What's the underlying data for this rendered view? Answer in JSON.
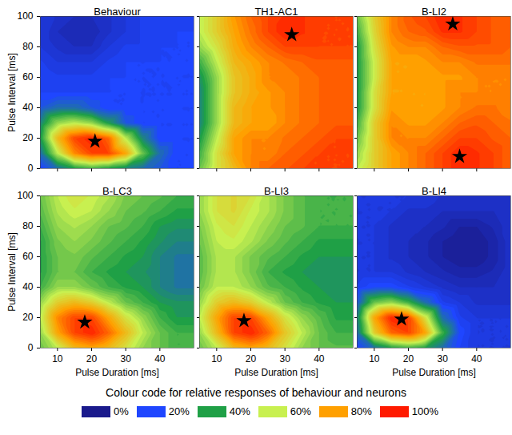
{
  "chart_data": [
    {
      "type": "contour",
      "title": "Behaviour",
      "ylabel": "Pulse Interval [ms]",
      "tick_labels": "y",
      "marker": "star",
      "xlim": [
        5,
        50
      ],
      "ylim": [
        0,
        100
      ],
      "xticks": [
        10,
        20,
        30,
        40
      ],
      "yticks": [
        0,
        20,
        40,
        60,
        80,
        100
      ],
      "x": [
        5,
        10,
        15,
        20,
        25,
        30,
        35,
        40,
        45,
        50
      ],
      "y": [
        0,
        10,
        20,
        30,
        40,
        50,
        60,
        70,
        80,
        90,
        100
      ],
      "values": [
        [
          20,
          30,
          40,
          45,
          40,
          35,
          30,
          25,
          20,
          20
        ],
        [
          30,
          60,
          85,
          95,
          95,
          80,
          50,
          30,
          20,
          20
        ],
        [
          40,
          75,
          95,
          100,
          90,
          60,
          35,
          20,
          20,
          20
        ],
        [
          35,
          55,
          60,
          55,
          40,
          25,
          20,
          20,
          20,
          20
        ],
        [
          25,
          30,
          30,
          25,
          20,
          20,
          20,
          20,
          20,
          20
        ],
        [
          20,
          20,
          20,
          20,
          20,
          20,
          20,
          20,
          20,
          20
        ],
        [
          20,
          18,
          18,
          18,
          20,
          20,
          20,
          20,
          20,
          20
        ],
        [
          18,
          15,
          15,
          15,
          18,
          20,
          20,
          20,
          20,
          20
        ],
        [
          15,
          12,
          10,
          10,
          15,
          18,
          18,
          20,
          20,
          20
        ],
        [
          15,
          10,
          8,
          8,
          12,
          15,
          18,
          18,
          20,
          20
        ],
        [
          15,
          12,
          10,
          10,
          12,
          15,
          18,
          18,
          18,
          18
        ]
      ],
      "peaks": [
        {
          "x": 21,
          "y": 18
        }
      ]
    },
    {
      "type": "contour",
      "title": "TH1-AC1",
      "tick_labels": false,
      "marker": "star",
      "xlim": [
        5,
        50
      ],
      "ylim": [
        0,
        100
      ],
      "xticks": [
        10,
        20,
        30,
        40
      ],
      "yticks": [
        0,
        20,
        40,
        60,
        80,
        100
      ],
      "x": [
        5,
        10,
        15,
        20,
        25,
        30,
        35,
        40,
        45,
        50
      ],
      "y": [
        0,
        10,
        20,
        30,
        40,
        50,
        60,
        70,
        80,
        90,
        100
      ],
      "values": [
        [
          50,
          65,
          75,
          85,
          90,
          92,
          95,
          95,
          95,
          95
        ],
        [
          45,
          65,
          80,
          85,
          85,
          90,
          92,
          95,
          95,
          95
        ],
        [
          40,
          60,
          80,
          85,
          85,
          88,
          90,
          92,
          95,
          95
        ],
        [
          35,
          55,
          75,
          80,
          80,
          85,
          88,
          90,
          92,
          92
        ],
        [
          35,
          55,
          75,
          80,
          82,
          85,
          88,
          90,
          92,
          92
        ],
        [
          35,
          55,
          72,
          78,
          82,
          85,
          88,
          90,
          92,
          92
        ],
        [
          38,
          55,
          72,
          78,
          85,
          85,
          88,
          90,
          92,
          92
        ],
        [
          45,
          60,
          75,
          80,
          85,
          88,
          90,
          92,
          92,
          92
        ],
        [
          55,
          65,
          78,
          85,
          90,
          95,
          95,
          95,
          95,
          95
        ],
        [
          60,
          70,
          80,
          88,
          95,
          100,
          98,
          95,
          95,
          95
        ],
        [
          60,
          70,
          82,
          90,
          95,
          98,
          98,
          95,
          95,
          95
        ]
      ],
      "peaks": [
        {
          "x": 32,
          "y": 88
        }
      ]
    },
    {
      "type": "contour",
      "title": "B-LI2",
      "tick_labels": false,
      "marker": "star",
      "xlim": [
        5,
        50
      ],
      "ylim": [
        0,
        100
      ],
      "xticks": [
        10,
        20,
        30,
        40
      ],
      "yticks": [
        0,
        20,
        40,
        60,
        80,
        100
      ],
      "x": [
        5,
        10,
        15,
        20,
        25,
        30,
        35,
        40,
        45,
        50
      ],
      "y": [
        0,
        10,
        20,
        30,
        40,
        50,
        60,
        70,
        80,
        90,
        100
      ],
      "values": [
        [
          60,
          70,
          80,
          85,
          90,
          95,
          100,
          98,
          95,
          90
        ],
        [
          55,
          70,
          80,
          85,
          90,
          95,
          100,
          98,
          95,
          90
        ],
        [
          50,
          70,
          85,
          85,
          85,
          90,
          95,
          95,
          92,
          90
        ],
        [
          45,
          70,
          85,
          82,
          82,
          85,
          90,
          92,
          90,
          88
        ],
        [
          40,
          65,
          82,
          80,
          80,
          82,
          85,
          88,
          88,
          85
        ],
        [
          40,
          65,
          80,
          80,
          80,
          82,
          85,
          85,
          85,
          85
        ],
        [
          40,
          62,
          80,
          80,
          80,
          82,
          82,
          85,
          85,
          85
        ],
        [
          40,
          62,
          80,
          80,
          82,
          85,
          85,
          88,
          88,
          88
        ],
        [
          40,
          65,
          82,
          85,
          85,
          90,
          92,
          92,
          92,
          90
        ],
        [
          45,
          68,
          85,
          90,
          92,
          98,
          98,
          95,
          92,
          90
        ],
        [
          50,
          70,
          85,
          92,
          95,
          100,
          98,
          95,
          92,
          90
        ]
      ],
      "peaks": [
        {
          "x": 33,
          "y": 95
        },
        {
          "x": 35,
          "y": 8
        }
      ]
    },
    {
      "type": "contour",
      "title": "B-LC3",
      "xlabel": "Pulse Duration [ms]",
      "ylabel": "Pulse Interval [ms]",
      "tick_labels": true,
      "marker": "star",
      "xlim": [
        5,
        50
      ],
      "ylim": [
        0,
        100
      ],
      "xticks": [
        10,
        20,
        30,
        40
      ],
      "yticks": [
        0,
        20,
        40,
        60,
        80,
        100
      ],
      "x": [
        5,
        10,
        15,
        20,
        25,
        30,
        35,
        40,
        45,
        50
      ],
      "y": [
        0,
        10,
        20,
        30,
        40,
        50,
        60,
        70,
        80,
        90,
        100
      ],
      "values": [
        [
          50,
          60,
          75,
          80,
          75,
          65,
          55,
          50,
          45,
          45
        ],
        [
          55,
          80,
          95,
          100,
          90,
          75,
          60,
          50,
          45,
          45
        ],
        [
          60,
          85,
          95,
          95,
          80,
          65,
          55,
          45,
          40,
          40
        ],
        [
          55,
          70,
          75,
          70,
          60,
          50,
          45,
          40,
          38,
          38
        ],
        [
          45,
          55,
          55,
          50,
          45,
          42,
          40,
          35,
          32,
          32
        ],
        [
          42,
          50,
          50,
          45,
          42,
          40,
          38,
          35,
          32,
          32
        ],
        [
          42,
          50,
          52,
          48,
          45,
          42,
          40,
          35,
          32,
          32
        ],
        [
          42,
          52,
          55,
          52,
          48,
          45,
          42,
          38,
          35,
          35
        ],
        [
          45,
          55,
          58,
          55,
          50,
          48,
          45,
          40,
          38,
          38
        ],
        [
          48,
          58,
          62,
          60,
          55,
          50,
          48,
          45,
          42,
          42
        ],
        [
          50,
          60,
          65,
          62,
          58,
          52,
          50,
          48,
          45,
          45
        ]
      ],
      "peaks": [
        {
          "x": 18,
          "y": 17
        }
      ]
    },
    {
      "type": "contour",
      "title": "B-LI3",
      "xlabel": "Pulse Duration [ms]",
      "tick_labels": "x",
      "marker": "star",
      "xlim": [
        5,
        50
      ],
      "ylim": [
        0,
        100
      ],
      "xticks": [
        10,
        20,
        30,
        40
      ],
      "yticks": [
        0,
        20,
        40,
        60,
        80,
        100
      ],
      "x": [
        5,
        10,
        15,
        20,
        25,
        30,
        35,
        40,
        45,
        50
      ],
      "y": [
        0,
        10,
        20,
        30,
        40,
        50,
        60,
        70,
        80,
        90,
        100
      ],
      "values": [
        [
          50,
          60,
          75,
          80,
          75,
          65,
          55,
          50,
          48,
          48
        ],
        [
          55,
          75,
          95,
          100,
          90,
          72,
          60,
          50,
          45,
          45
        ],
        [
          60,
          80,
          95,
          95,
          80,
          65,
          55,
          48,
          42,
          42
        ],
        [
          55,
          70,
          75,
          70,
          60,
          50,
          45,
          42,
          40,
          40
        ],
        [
          50,
          60,
          60,
          55,
          48,
          45,
          42,
          40,
          38,
          38
        ],
        [
          48,
          58,
          58,
          52,
          45,
          42,
          40,
          38,
          38,
          38
        ],
        [
          48,
          58,
          58,
          52,
          48,
          45,
          42,
          40,
          40,
          40
        ],
        [
          50,
          60,
          62,
          58,
          52,
          48,
          45,
          42,
          42,
          42
        ],
        [
          52,
          62,
          65,
          60,
          55,
          50,
          48,
          45,
          45,
          45
        ],
        [
          55,
          65,
          68,
          62,
          58,
          52,
          48,
          45,
          45,
          45
        ],
        [
          55,
          65,
          68,
          65,
          58,
          52,
          48,
          45,
          45,
          45
        ]
      ],
      "peaks": [
        {
          "x": 18,
          "y": 18
        }
      ]
    },
    {
      "type": "contour",
      "title": "B-LI4",
      "xlabel": "Pulse Duration [ms]",
      "tick_labels": "x",
      "marker": "star",
      "xlim": [
        5,
        50
      ],
      "ylim": [
        0,
        100
      ],
      "xticks": [
        10,
        20,
        30,
        40
      ],
      "yticks": [
        0,
        20,
        40,
        60,
        80,
        100
      ],
      "x": [
        5,
        10,
        15,
        20,
        25,
        30,
        35,
        40,
        45,
        50
      ],
      "y": [
        0,
        10,
        20,
        30,
        40,
        50,
        60,
        70,
        80,
        90,
        100
      ],
      "values": [
        [
          20,
          30,
          40,
          45,
          40,
          30,
          20,
          15,
          15,
          15
        ],
        [
          30,
          70,
          90,
          95,
          80,
          45,
          22,
          15,
          15,
          15
        ],
        [
          35,
          80,
          100,
          95,
          65,
          30,
          18,
          15,
          15,
          15
        ],
        [
          25,
          50,
          55,
          45,
          30,
          18,
          15,
          12,
          12,
          12
        ],
        [
          18,
          22,
          22,
          18,
          15,
          12,
          10,
          10,
          10,
          12
        ],
        [
          15,
          15,
          15,
          12,
          10,
          8,
          6,
          6,
          8,
          12
        ],
        [
          15,
          15,
          12,
          10,
          8,
          5,
          3,
          3,
          6,
          12
        ],
        [
          15,
          15,
          12,
          10,
          8,
          5,
          3,
          3,
          6,
          12
        ],
        [
          15,
          15,
          12,
          10,
          10,
          8,
          5,
          5,
          8,
          12
        ],
        [
          15,
          15,
          15,
          12,
          12,
          10,
          10,
          10,
          10,
          12
        ],
        [
          15,
          15,
          15,
          15,
          15,
          12,
          12,
          12,
          12,
          12
        ]
      ],
      "peaks": [
        {
          "x": 18,
          "y": 19
        }
      ]
    }
  ],
  "colorbar": {
    "title": "Colour code for relative responses of behaviour and neurons",
    "range": [
      0,
      100
    ],
    "ticks": [
      {
        "value": 0,
        "label": "0%"
      },
      {
        "value": 20,
        "label": "20%"
      },
      {
        "value": 40,
        "label": "40%"
      },
      {
        "value": 60,
        "label": "60%"
      },
      {
        "value": 80,
        "label": "80%"
      },
      {
        "value": 100,
        "label": "100%"
      }
    ],
    "colors": [
      "#1a1a8c",
      "#1f46ff",
      "#1fa046",
      "#c8f050",
      "#ffa000",
      "#ff1a00"
    ]
  }
}
